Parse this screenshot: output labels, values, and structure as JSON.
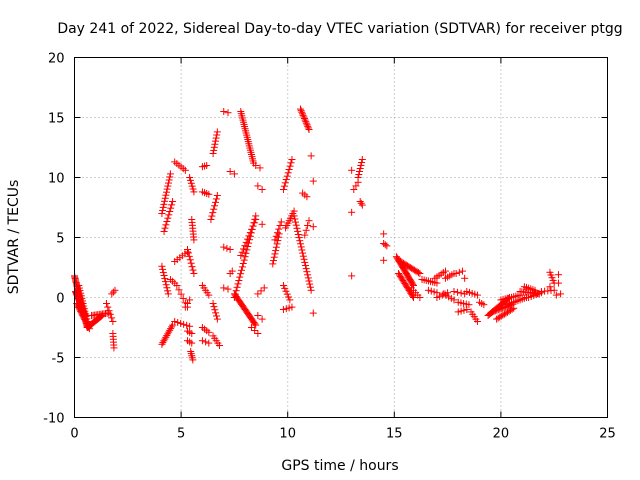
{
  "chart_data": {
    "type": "scatter",
    "title": "Day 241 of 2022, Sidereal Day-to-day VTEC variation (SDTVAR) for receiver ptgg",
    "xlabel": "GPS time / hours",
    "ylabel": "SDTVAR / TECUs",
    "xlim": [
      0,
      25
    ],
    "ylim": [
      -10,
      20
    ],
    "x_ticks": [
      0,
      5,
      10,
      15,
      20,
      25
    ],
    "y_ticks": [
      -10,
      -5,
      0,
      5,
      10,
      15,
      20
    ],
    "x_tick_labels": [
      "0",
      "5",
      "10",
      "15",
      "20",
      "25"
    ],
    "y_tick_labels": [
      "-10",
      "-5",
      "0",
      "5",
      "10",
      "15",
      "20"
    ],
    "grid": true,
    "marker": "+",
    "series": [
      {
        "name": "SDTVAR",
        "color": "#ff0000",
        "segments": [
          {
            "x0": 0.0,
            "x1": 0.6,
            "y0": 1.8,
            "y1": -2.5,
            "n": 40
          },
          {
            "x0": 0.05,
            "x1": 0.5,
            "y0": 0.5,
            "y1": -1.5,
            "n": 25
          },
          {
            "x0": 0.1,
            "x1": 0.7,
            "y0": -0.5,
            "y1": -2.6,
            "n": 20
          },
          {
            "x0": 0.2,
            "x1": 0.6,
            "y0": 1.0,
            "y1": -2.0,
            "n": 15
          },
          {
            "x0": 0.6,
            "x1": 1.3,
            "y0": -2.5,
            "y1": -1.5,
            "n": 20
          },
          {
            "x0": 0.8,
            "x1": 1.6,
            "y0": -1.5,
            "y1": -1.3,
            "n": 12
          },
          {
            "x0": 1.5,
            "x1": 1.8,
            "y0": -0.5,
            "y1": -2.0,
            "n": 6
          },
          {
            "x0": 1.8,
            "x1": 1.85,
            "y0": -3.0,
            "y1": -4.2,
            "n": 6
          },
          {
            "x0": 1.75,
            "x1": 1.9,
            "y0": 0.3,
            "y1": 0.6,
            "n": 3
          },
          {
            "x0": 4.1,
            "x1": 4.5,
            "y0": 7.0,
            "y1": 10.3,
            "n": 14
          },
          {
            "x0": 4.2,
            "x1": 4.6,
            "y0": 5.5,
            "y1": 8.0,
            "n": 10
          },
          {
            "x0": 4.1,
            "x1": 4.4,
            "y0": 2.6,
            "y1": 0.3,
            "n": 10
          },
          {
            "x0": 4.1,
            "x1": 4.6,
            "y0": -3.9,
            "y1": -2.3,
            "n": 12
          },
          {
            "x0": 4.5,
            "x1": 4.7,
            "y0": 1.5,
            "y1": 1.2,
            "n": 3
          },
          {
            "x0": 4.7,
            "x1": 5.2,
            "y0": 11.3,
            "y1": 10.6,
            "n": 6
          },
          {
            "x0": 4.7,
            "x1": 5.4,
            "y0": -2.0,
            "y1": -2.4,
            "n": 6
          },
          {
            "x0": 4.7,
            "x1": 5.3,
            "y0": 3.0,
            "y1": 3.8,
            "n": 6
          },
          {
            "x0": 4.8,
            "x1": 5.3,
            "y0": 1.0,
            "y1": -0.8,
            "n": 6
          },
          {
            "x0": 5.2,
            "x1": 5.4,
            "y0": -0.8,
            "y1": -0.2,
            "n": 3
          },
          {
            "x0": 5.3,
            "x1": 5.6,
            "y0": 4.0,
            "y1": 2.0,
            "n": 8
          },
          {
            "x0": 5.5,
            "x1": 5.6,
            "y0": 6.5,
            "y1": 4.8,
            "n": 8
          },
          {
            "x0": 5.4,
            "x1": 5.6,
            "y0": 10.0,
            "y1": 8.8,
            "n": 6
          },
          {
            "x0": 5.3,
            "x1": 5.5,
            "y0": -3.6,
            "y1": -3.8,
            "n": 3
          },
          {
            "x0": 5.45,
            "x1": 5.55,
            "y0": -4.5,
            "y1": -5.2,
            "n": 5
          },
          {
            "x0": 5.3,
            "x1": 5.5,
            "y0": -2.8,
            "y1": -3.0,
            "n": 3
          },
          {
            "x0": 6.0,
            "x1": 6.2,
            "y0": 10.9,
            "y1": 11.0,
            "n": 3
          },
          {
            "x0": 6.0,
            "x1": 6.3,
            "y0": 8.8,
            "y1": 8.6,
            "n": 4
          },
          {
            "x0": 6.0,
            "x1": 6.3,
            "y0": 1.0,
            "y1": 0.2,
            "n": 5
          },
          {
            "x0": 6.0,
            "x1": 6.3,
            "y0": -2.5,
            "y1": -2.9,
            "n": 4
          },
          {
            "x0": 6.0,
            "x1": 6.3,
            "y0": -3.6,
            "y1": -3.8,
            "n": 3
          },
          {
            "x0": 6.5,
            "x1": 6.7,
            "y0": 12.0,
            "y1": 13.8,
            "n": 8
          },
          {
            "x0": 6.4,
            "x1": 6.7,
            "y0": 6.5,
            "y1": 8.5,
            "n": 8
          },
          {
            "x0": 6.5,
            "x1": 6.7,
            "y0": -0.5,
            "y1": -1.8,
            "n": 6
          },
          {
            "x0": 6.5,
            "x1": 6.8,
            "y0": -3.2,
            "y1": -4.0,
            "n": 5
          },
          {
            "x0": 7.0,
            "x1": 7.2,
            "y0": 15.5,
            "y1": 15.4,
            "n": 2
          },
          {
            "x0": 7.0,
            "x1": 7.3,
            "y0": 4.2,
            "y1": 4.0,
            "n": 3
          },
          {
            "x0": 7.3,
            "x1": 7.5,
            "y0": 10.5,
            "y1": 10.3,
            "n": 2
          },
          {
            "x0": 7.3,
            "x1": 7.4,
            "y0": 2.0,
            "y1": 2.2,
            "n": 2
          },
          {
            "x0": 7.0,
            "x1": 7.2,
            "y0": 0.8,
            "y1": 0.7,
            "n": 2
          },
          {
            "x0": 7.5,
            "x1": 8.5,
            "y0": 0.3,
            "y1": -2.3,
            "n": 25
          },
          {
            "x0": 7.5,
            "x1": 8.5,
            "y0": 0.0,
            "y1": 6.8,
            "n": 25
          },
          {
            "x0": 7.8,
            "x1": 8.4,
            "y0": 15.5,
            "y1": 11.2,
            "n": 25
          },
          {
            "x0": 7.8,
            "x1": 8.5,
            "y0": 3.5,
            "y1": 6.5,
            "n": 12
          },
          {
            "x0": 8.3,
            "x1": 8.6,
            "y0": -2.5,
            "y1": -3.0,
            "n": 3
          },
          {
            "x0": 8.5,
            "x1": 8.7,
            "y0": 11.0,
            "y1": 10.8,
            "n": 2
          },
          {
            "x0": 8.6,
            "x1": 8.9,
            "y0": 0.3,
            "y1": 0.8,
            "n": 3
          },
          {
            "x0": 8.6,
            "x1": 8.8,
            "y0": 9.3,
            "y1": 9.0,
            "n": 2
          },
          {
            "x0": 8.6,
            "x1": 8.8,
            "y0": -1.5,
            "y1": -1.8,
            "n": 2
          },
          {
            "x0": 8.8,
            "x1": 8.9,
            "y0": 6.1,
            "y1": 6.1,
            "n": 1
          },
          {
            "x0": 9.3,
            "x1": 9.6,
            "y0": 2.8,
            "y1": 5.3,
            "n": 10
          },
          {
            "x0": 9.4,
            "x1": 9.7,
            "y0": 4.8,
            "y1": 6.3,
            "n": 6
          },
          {
            "x0": 9.8,
            "x1": 10.2,
            "y0": 9.0,
            "y1": 11.5,
            "n": 10
          },
          {
            "x0": 9.9,
            "x1": 10.3,
            "y0": 5.8,
            "y1": 7.2,
            "n": 8
          },
          {
            "x0": 9.8,
            "x1": 10.1,
            "y0": 1.0,
            "y1": -0.2,
            "n": 6
          },
          {
            "x0": 9.8,
            "x1": 10.2,
            "y0": -1.0,
            "y1": -0.8,
            "n": 4
          },
          {
            "x0": 10.3,
            "x1": 11.1,
            "y0": 6.8,
            "y1": 0.6,
            "n": 25
          },
          {
            "x0": 10.6,
            "x1": 11.0,
            "y0": 15.7,
            "y1": 14.0,
            "n": 14
          },
          {
            "x0": 10.7,
            "x1": 10.9,
            "y0": 8.7,
            "y1": 8.4,
            "n": 3
          },
          {
            "x0": 10.8,
            "x1": 11.0,
            "y0": 5.2,
            "y1": 6.4,
            "n": 4
          },
          {
            "x0": 11.1,
            "x1": 11.2,
            "y0": 11.8,
            "y1": 11.8,
            "n": 1
          },
          {
            "x0": 11.2,
            "x1": 11.3,
            "y0": 9.7,
            "y1": 9.7,
            "n": 1
          },
          {
            "x0": 11.2,
            "x1": 11.3,
            "y0": 5.9,
            "y1": 5.9,
            "n": 1
          },
          {
            "x0": 11.2,
            "x1": 11.3,
            "y0": -1.3,
            "y1": -1.3,
            "n": 1
          },
          {
            "x0": 13.0,
            "x1": 13.1,
            "y0": 10.6,
            "y1": 10.6,
            "n": 1
          },
          {
            "x0": 13.0,
            "x1": 13.1,
            "y0": 7.1,
            "y1": 7.1,
            "n": 1
          },
          {
            "x0": 13.0,
            "x1": 13.1,
            "y0": 1.8,
            "y1": 1.8,
            "n": 1
          },
          {
            "x0": 13.1,
            "x1": 13.3,
            "y0": 9.0,
            "y1": 9.6,
            "n": 3
          },
          {
            "x0": 13.3,
            "x1": 13.5,
            "y0": 10.0,
            "y1": 11.5,
            "n": 7
          },
          {
            "x0": 13.4,
            "x1": 13.5,
            "y0": 8.0,
            "y1": 7.7,
            "n": 3
          },
          {
            "x0": 14.5,
            "x1": 14.6,
            "y0": 5.3,
            "y1": 5.3,
            "n": 1
          },
          {
            "x0": 14.5,
            "x1": 14.65,
            "y0": 4.5,
            "y1": 4.3,
            "n": 3
          },
          {
            "x0": 14.5,
            "x1": 14.6,
            "y0": 3.1,
            "y1": 3.1,
            "n": 1
          },
          {
            "x0": 15.1,
            "x1": 15.9,
            "y0": 3.4,
            "y1": 1.0,
            "n": 25
          },
          {
            "x0": 15.2,
            "x1": 15.9,
            "y0": 2.0,
            "y1": 0.0,
            "n": 18
          },
          {
            "x0": 15.3,
            "x1": 16.2,
            "y0": 3.0,
            "y1": 2.0,
            "n": 15
          },
          {
            "x0": 15.8,
            "x1": 16.2,
            "y0": 0.8,
            "y1": 0.0,
            "n": 5
          },
          {
            "x0": 16.3,
            "x1": 17.0,
            "y0": 1.5,
            "y1": 1.2,
            "n": 8
          },
          {
            "x0": 16.6,
            "x1": 17.0,
            "y0": 0.6,
            "y1": 0.4,
            "n": 4
          },
          {
            "x0": 16.9,
            "x1": 17.4,
            "y0": 1.6,
            "y1": 2.2,
            "n": 6
          },
          {
            "x0": 17.0,
            "x1": 17.5,
            "y0": 0.0,
            "y1": 0.4,
            "n": 5
          },
          {
            "x0": 17.4,
            "x1": 17.8,
            "y0": 1.6,
            "y1": 2.0,
            "n": 5
          },
          {
            "x0": 17.3,
            "x1": 17.8,
            "y0": 0.3,
            "y1": -0.2,
            "n": 5
          },
          {
            "x0": 17.9,
            "x1": 18.2,
            "y0": 2.0,
            "y1": 2.2,
            "n": 3
          },
          {
            "x0": 17.8,
            "x1": 18.3,
            "y0": 0.5,
            "y1": 0.3,
            "n": 4
          },
          {
            "x0": 18.0,
            "x1": 18.5,
            "y0": -0.4,
            "y1": -0.6,
            "n": 5
          },
          {
            "x0": 18.0,
            "x1": 18.4,
            "y0": -1.2,
            "y1": -1.0,
            "n": 4
          },
          {
            "x0": 18.4,
            "x1": 18.9,
            "y0": 0.5,
            "y1": 0.2,
            "n": 5
          },
          {
            "x0": 18.6,
            "x1": 18.9,
            "y0": -1.2,
            "y1": -2.0,
            "n": 5
          },
          {
            "x0": 18.3,
            "x1": 18.4,
            "y0": 1.6,
            "y1": 1.6,
            "n": 1
          },
          {
            "x0": 19.0,
            "x1": 19.2,
            "y0": -0.4,
            "y1": -0.6,
            "n": 3
          },
          {
            "x0": 19.4,
            "x1": 20.4,
            "y0": -1.5,
            "y1": 0.0,
            "n": 20
          },
          {
            "x0": 19.6,
            "x1": 20.5,
            "y0": -1.2,
            "y1": -0.6,
            "n": 14
          },
          {
            "x0": 19.8,
            "x1": 20.6,
            "y0": -1.8,
            "y1": -0.9,
            "n": 12
          },
          {
            "x0": 20.0,
            "x1": 20.9,
            "y0": -0.2,
            "y1": 0.2,
            "n": 10
          },
          {
            "x0": 20.3,
            "x1": 21.2,
            "y0": -0.6,
            "y1": 0.0,
            "n": 10
          },
          {
            "x0": 20.9,
            "x1": 21.8,
            "y0": 0.5,
            "y1": 0.3,
            "n": 12
          },
          {
            "x0": 21.1,
            "x1": 21.6,
            "y0": 0.9,
            "y1": 0.6,
            "n": 6
          },
          {
            "x0": 21.3,
            "x1": 21.9,
            "y0": 0.0,
            "y1": 0.4,
            "n": 6
          },
          {
            "x0": 21.9,
            "x1": 22.5,
            "y0": 0.5,
            "y1": 0.6,
            "n": 5
          },
          {
            "x0": 22.3,
            "x1": 22.5,
            "y0": 2.1,
            "y1": 1.2,
            "n": 5
          },
          {
            "x0": 22.3,
            "x1": 22.4,
            "y0": 0.9,
            "y1": 0.9,
            "n": 1
          },
          {
            "x0": 22.7,
            "x1": 22.8,
            "y0": 1.9,
            "y1": 1.9,
            "n": 1
          },
          {
            "x0": 22.7,
            "x1": 22.8,
            "y0": 1.2,
            "y1": 1.2,
            "n": 1
          },
          {
            "x0": 22.6,
            "x1": 22.8,
            "y0": 0.2,
            "y1": 0.3,
            "n": 2
          }
        ]
      }
    ]
  }
}
